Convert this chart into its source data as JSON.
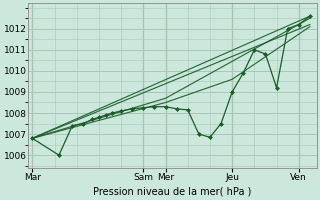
{
  "bg_color": "#cce8dc",
  "grid_color": "#a8c8b8",
  "line_color": "#1a5c2a",
  "ylabel": "Pression niveau de la mer( hPa )",
  "ylim": [
    1005.4,
    1013.2
  ],
  "yticks": [
    1006,
    1007,
    1008,
    1009,
    1010,
    1011,
    1012
  ],
  "xtick_labels": [
    "Mar",
    "Sam",
    "Mer",
    "Jeu",
    "Ven"
  ],
  "xtick_positions": [
    0,
    5,
    6,
    9,
    12
  ],
  "xlim": [
    -0.2,
    12.8
  ],
  "detailed_x": [
    0.0,
    1.2,
    1.8,
    2.3,
    2.7,
    3.0,
    3.3,
    3.6,
    4.0,
    4.5,
    5.0,
    5.5,
    6.0,
    6.5,
    7.0,
    7.5,
    8.0,
    8.5,
    9.0,
    9.5,
    10.0,
    10.5,
    11.0,
    11.5,
    12.0,
    12.5
  ],
  "detailed_y": [
    1006.8,
    1006.0,
    1007.4,
    1007.5,
    1007.7,
    1007.8,
    1007.9,
    1008.0,
    1008.1,
    1008.2,
    1008.25,
    1008.3,
    1008.3,
    1008.2,
    1008.15,
    1007.0,
    1006.85,
    1007.5,
    1009.0,
    1009.9,
    1011.0,
    1010.8,
    1009.2,
    1012.0,
    1012.2,
    1012.6
  ],
  "smooth_lines": [
    {
      "x": [
        0.0,
        12.5
      ],
      "y": [
        1006.8,
        1012.6
      ]
    },
    {
      "x": [
        0.0,
        12.5
      ],
      "y": [
        1006.8,
        1012.2
      ]
    },
    {
      "x": [
        0.0,
        6.0,
        12.5
      ],
      "y": [
        1006.8,
        1008.7,
        1012.5
      ]
    },
    {
      "x": [
        0.0,
        6.0,
        9.0,
        12.5
      ],
      "y": [
        1006.8,
        1008.5,
        1009.6,
        1012.1
      ]
    }
  ],
  "vline_positions": [
    0,
    5,
    6,
    9,
    12
  ]
}
